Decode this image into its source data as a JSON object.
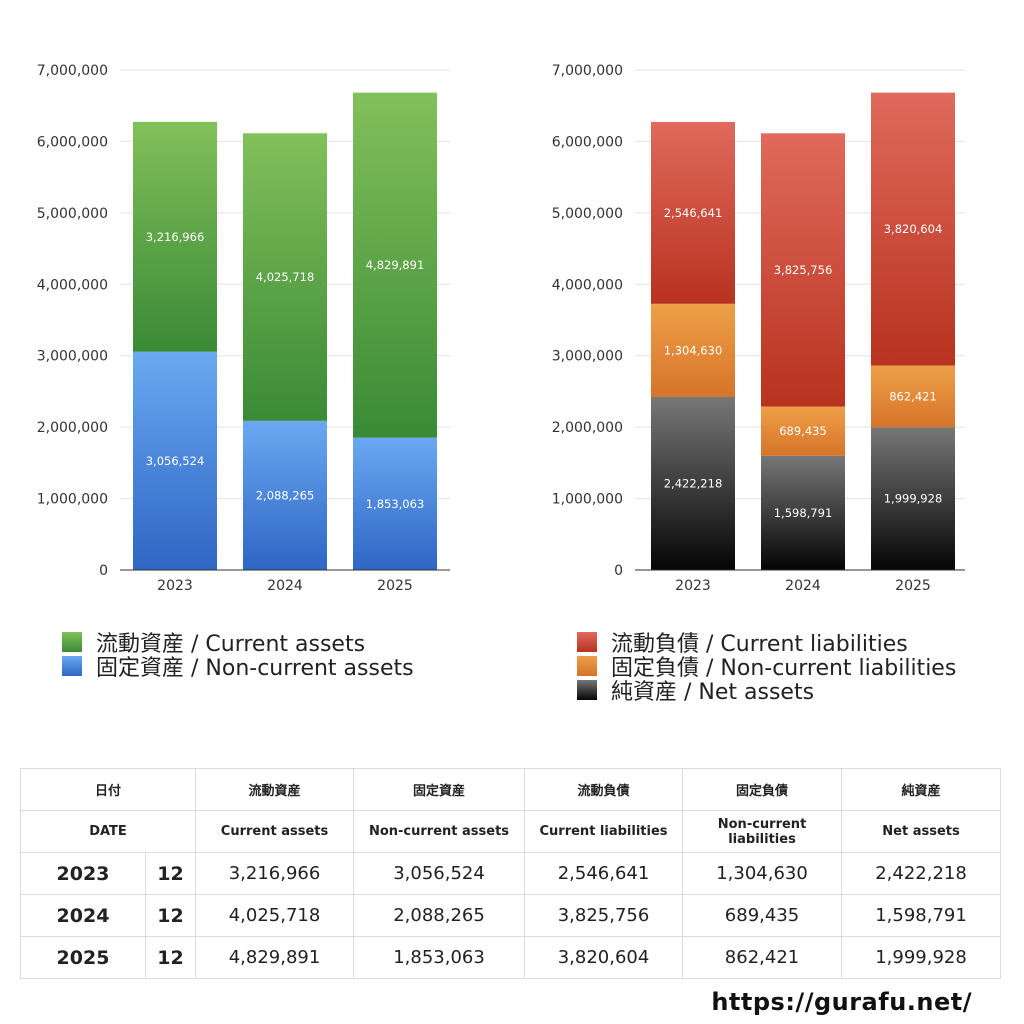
{
  "colors": {
    "current_assets": "#4a9a3e",
    "non_current_assets": "#4a86d8",
    "current_liabilities": "#cc4131",
    "non_current_liabilities": "#e0872f",
    "net_assets": "#333333"
  },
  "chart_data": [
    {
      "type": "bar",
      "stacked": true,
      "categories": [
        "2023",
        "2024",
        "2025"
      ],
      "ylim": [
        0,
        7000000
      ],
      "yticks": [
        "0",
        "1,000,000",
        "2,000,000",
        "3,000,000",
        "4,000,000",
        "5,000,000",
        "6,000,000",
        "7,000,000"
      ],
      "grid": true,
      "series": [
        {
          "name": "固定資産 / Non-current assets",
          "key": "non_current_assets",
          "values": [
            3056524,
            2088265,
            1853063
          ],
          "labels": [
            "3,056,524",
            "2,088,265",
            "1,853,063"
          ]
        },
        {
          "name": "流動資産 / Current assets",
          "key": "current_assets",
          "values": [
            3216966,
            4025718,
            4829891
          ],
          "labels": [
            "3,216,966",
            "4,025,718",
            "4,829,891"
          ]
        }
      ],
      "legend": [
        "流動資産 / Current assets",
        "固定資産 / Non-current assets"
      ],
      "legend_keys": [
        "current_assets",
        "non_current_assets"
      ],
      "legend_position": "bottom"
    },
    {
      "type": "bar",
      "stacked": true,
      "categories": [
        "2023",
        "2024",
        "2025"
      ],
      "ylim": [
        0,
        7000000
      ],
      "yticks": [
        "0",
        "1,000,000",
        "2,000,000",
        "3,000,000",
        "4,000,000",
        "5,000,000",
        "6,000,000",
        "7,000,000"
      ],
      "grid": true,
      "series": [
        {
          "name": "純資産 / Net assets",
          "key": "net_assets",
          "values": [
            2422218,
            1598791,
            1999928
          ],
          "labels": [
            "2,422,218",
            "1,598,791",
            "1,999,928"
          ]
        },
        {
          "name": "固定負債 / Non-current liabilities",
          "key": "non_current_liabilities",
          "values": [
            1304630,
            689435,
            862421
          ],
          "labels": [
            "1,304,630",
            "689,435",
            "862,421"
          ]
        },
        {
          "name": "流動負債 / Current liabilities",
          "key": "current_liabilities",
          "values": [
            2546641,
            3825756,
            3820604
          ],
          "labels": [
            "2,546,641",
            "3,825,756",
            "3,820,604"
          ]
        }
      ],
      "legend": [
        "流動負債 / Current liabilities",
        "固定負債 / Non-current liabilities",
        "純資産 / Net assets"
      ],
      "legend_keys": [
        "current_liabilities",
        "non_current_liabilities",
        "net_assets"
      ],
      "legend_position": "bottom"
    }
  ],
  "table": {
    "header_jp": [
      "日付",
      "流動資産",
      "固定資産",
      "流動負債",
      "固定負債",
      "純資産"
    ],
    "header_en": [
      "DATE",
      "Current assets",
      "Non-current assets",
      "Current liabilities",
      "Non-current liabilities",
      "Net assets"
    ],
    "rows": [
      {
        "year": "2023",
        "month": "12",
        "values": [
          "3,216,966",
          "3,056,524",
          "2,546,641",
          "1,304,630",
          "2,422,218"
        ]
      },
      {
        "year": "2024",
        "month": "12",
        "values": [
          "4,025,718",
          "2,088,265",
          "3,825,756",
          "689,435",
          "1,598,791"
        ]
      },
      {
        "year": "2025",
        "month": "12",
        "values": [
          "4,829,891",
          "1,853,063",
          "3,820,604",
          "862,421",
          "1,999,928"
        ]
      }
    ]
  },
  "footer": {
    "url": "https://gurafu.net/"
  }
}
